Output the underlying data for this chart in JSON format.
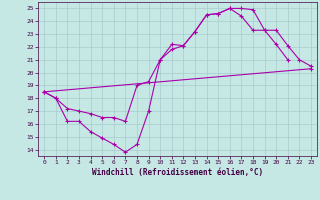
{
  "xlabel": "Windchill (Refroidissement éolien,°C)",
  "xlim": [
    -0.5,
    23.5
  ],
  "ylim": [
    13.5,
    25.5
  ],
  "xticks": [
    0,
    1,
    2,
    3,
    4,
    5,
    6,
    7,
    8,
    9,
    10,
    11,
    12,
    13,
    14,
    15,
    16,
    17,
    18,
    19,
    20,
    21,
    22,
    23
  ],
  "yticks": [
    14,
    15,
    16,
    17,
    18,
    19,
    20,
    21,
    22,
    23,
    24,
    25
  ],
  "bg_color": "#c5e8e5",
  "grid_color": "#a8cccc",
  "line_color": "#aa00aa",
  "line1_x": [
    0,
    1,
    2,
    3,
    4,
    5,
    6,
    7,
    8,
    9,
    10,
    11,
    12,
    13,
    14,
    15,
    16,
    17,
    18,
    19,
    20,
    21
  ],
  "line1_y": [
    18.5,
    18.0,
    16.2,
    16.2,
    15.4,
    14.9,
    14.4,
    13.8,
    14.4,
    17.0,
    21.0,
    21.8,
    22.1,
    23.2,
    24.5,
    24.6,
    25.0,
    25.0,
    24.9,
    23.3,
    22.2,
    21.0
  ],
  "line2_x": [
    0,
    1,
    2,
    3,
    4,
    5,
    6,
    7,
    8,
    9,
    10,
    11,
    12,
    13,
    14,
    15,
    16,
    17,
    18,
    19,
    20,
    21,
    22,
    23
  ],
  "line2_y": [
    18.5,
    18.0,
    17.2,
    17.0,
    16.8,
    16.5,
    16.5,
    16.2,
    19.0,
    19.3,
    21.0,
    22.2,
    22.1,
    23.2,
    24.5,
    24.6,
    25.0,
    24.4,
    23.3,
    23.3,
    23.3,
    22.1,
    21.0,
    20.5
  ],
  "line3_x": [
    0,
    23
  ],
  "line3_y": [
    18.5,
    20.3
  ]
}
